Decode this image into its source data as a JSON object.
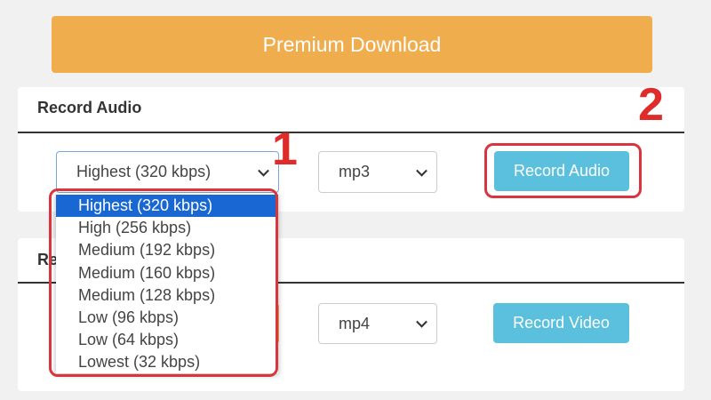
{
  "premium_button": "Premium Download",
  "audio_section": {
    "title": "Record Audio",
    "quality_select": "Highest (320 kbps)",
    "format_select": "mp3",
    "button": "Record Audio"
  },
  "video_section": {
    "title": "Record Video",
    "format_select": "mp4",
    "button": "Record Video"
  },
  "dropdown_options": [
    "Highest (320 kbps)",
    "High (256 kbps)",
    "Medium (192 kbps)",
    "Medium (160 kbps)",
    "Medium (128 kbps)",
    "Low (96 kbps)",
    "Low (64 kbps)",
    "Lowest (32 kbps)"
  ],
  "annotations": [
    "1",
    "2"
  ]
}
